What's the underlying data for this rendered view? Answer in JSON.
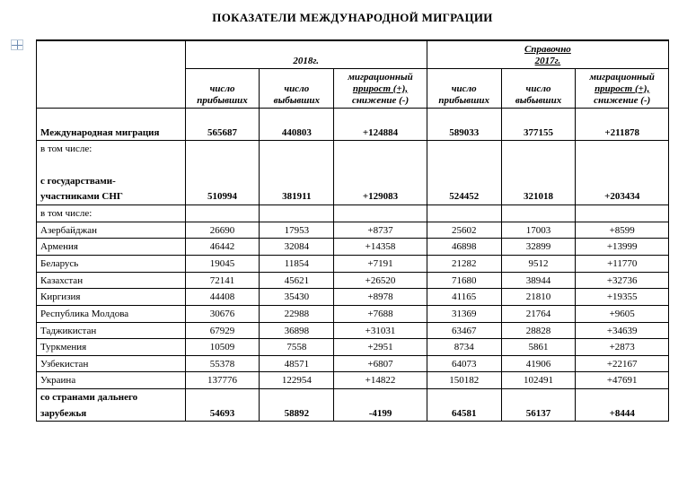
{
  "title": "ПОКАЗАТЕЛИ МЕЖДУНАРОДНОЙ МИГРАЦИИ",
  "header": {
    "year2018": "2018г.",
    "ref_line1": "Справочно",
    "ref_line2": "2017г.",
    "arrivals": "число прибывших",
    "departures": "число выбывших",
    "growth_l1": "миграционный",
    "growth_l2": "прирост (+),",
    "growth_l3": "снижение (-)"
  },
  "rows": {
    "intl": {
      "label": "Международная миграция",
      "a18": "565687",
      "d18": "440803",
      "g18": "+124884",
      "a17": "589033",
      "d17": "377155",
      "g17": "+211878"
    },
    "incl": {
      "label": "в том числе:"
    },
    "cis_l1": {
      "label": "с государствами-"
    },
    "cis": {
      "label": "участниками СНГ",
      "a18": "510994",
      "d18": "381911",
      "g18": "+129083",
      "a17": "524452",
      "d17": "321018",
      "g17": "+203434"
    },
    "az": {
      "label": "Азербайджан",
      "a18": "26690",
      "d18": "17953",
      "g18": "+8737",
      "a17": "25602",
      "d17": "17003",
      "g17": "+8599"
    },
    "am": {
      "label": "Армения",
      "a18": "46442",
      "d18": "32084",
      "g18": "+14358",
      "a17": "46898",
      "d17": "32899",
      "g17": "+13999"
    },
    "by": {
      "label": "Беларусь",
      "a18": "19045",
      "d18": "11854",
      "g18": "+7191",
      "a17": "21282",
      "d17": "9512",
      "g17": "+11770"
    },
    "kz": {
      "label": "Казахстан",
      "a18": "72141",
      "d18": "45621",
      "g18": "+26520",
      "a17": "71680",
      "d17": "38944",
      "g17": "+32736"
    },
    "kg": {
      "label": "Киргизия",
      "a18": "44408",
      "d18": "35430",
      "g18": "+8978",
      "a17": "41165",
      "d17": "21810",
      "g17": "+19355"
    },
    "md": {
      "label": "Республика Молдова",
      "a18": "30676",
      "d18": "22988",
      "g18": "+7688",
      "a17": "31369",
      "d17": "21764",
      "g17": "+9605"
    },
    "tj": {
      "label": "Таджикистан",
      "a18": "67929",
      "d18": "36898",
      "g18": "+31031",
      "a17": "63467",
      "d17": "28828",
      "g17": "+34639"
    },
    "tm": {
      "label": "Туркмения",
      "a18": "10509",
      "d18": "7558",
      "g18": "+2951",
      "a17": "8734",
      "d17": "5861",
      "g17": "+2873"
    },
    "uz": {
      "label": "Узбекистан",
      "a18": "55378",
      "d18": "48571",
      "g18": "+6807",
      "a17": "64073",
      "d17": "41906",
      "g17": "+22167"
    },
    "ua": {
      "label": "Украина",
      "a18": "137776",
      "d18": "122954",
      "g18": "+14822",
      "a17": "150182",
      "d17": "102491",
      "g17": "+47691"
    },
    "far_l1": {
      "label": "со странами дальнего"
    },
    "far": {
      "label": "зарубежья",
      "a18": "54693",
      "d18": "58892",
      "g18": "-4199",
      "a17": "64581",
      "d17": "56137",
      "g17": "+8444"
    }
  }
}
